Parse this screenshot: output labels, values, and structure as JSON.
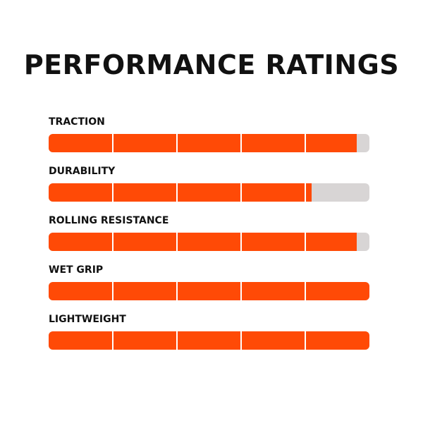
{
  "title": "PERFORMANCE RATINGS",
  "colors": {
    "fill": "#ff4a06",
    "track": "#d8d5d5",
    "divider": "#ffffff",
    "text": "#111111"
  },
  "chart_data": {
    "type": "bar",
    "title": "PERFORMANCE RATINGS",
    "orientation": "horizontal",
    "scale_max": 5,
    "segments": 5,
    "categories": [
      "TRACTION",
      "DURABILITY",
      "ROLLING RESISTANCE",
      "WET GRIP",
      "LIGHTWEIGHT"
    ],
    "values": [
      4.8,
      4.1,
      4.8,
      5,
      5
    ]
  }
}
